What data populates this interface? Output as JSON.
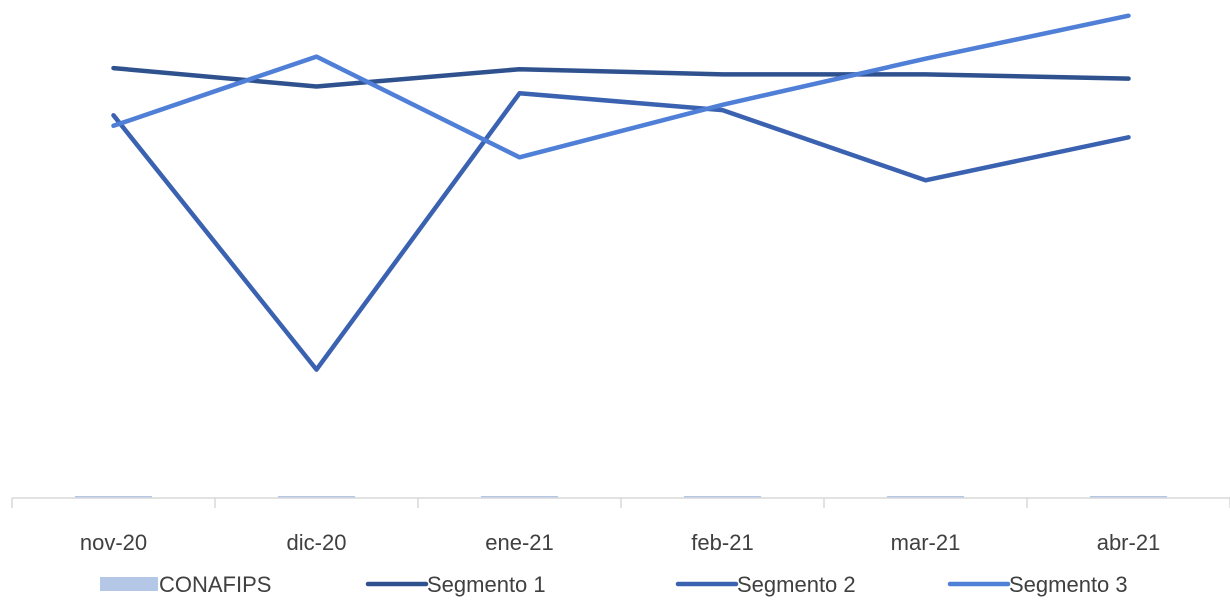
{
  "chart_data": {
    "type": "line",
    "categories": [
      "nov-20",
      "dic-20",
      "ene-21",
      "feb-21",
      "mar-21",
      "abr-21"
    ],
    "series": [
      {
        "name": "CONAFIPS",
        "kind": "bar",
        "color": "#B4C7E7",
        "values": [
          0,
          0,
          0,
          0,
          0,
          0
        ]
      },
      {
        "name": "Segmento 1",
        "kind": "line",
        "color": "#2F528F",
        "values": [
          8.2,
          7.85,
          8.18,
          8.08,
          8.08,
          8.0
        ]
      },
      {
        "name": "Segmento 2",
        "kind": "line",
        "color": "#3A62B0",
        "values": [
          7.3,
          2.45,
          7.72,
          7.4,
          6.06,
          6.88
        ]
      },
      {
        "name": "Segmento 3",
        "kind": "line",
        "color": "#4F7FD6",
        "values": [
          7.1,
          8.42,
          6.5,
          7.5,
          8.38,
          9.2
        ]
      }
    ],
    "ylim": [
      0,
      9.5
    ],
    "grid": false,
    "legend": "bottom"
  }
}
